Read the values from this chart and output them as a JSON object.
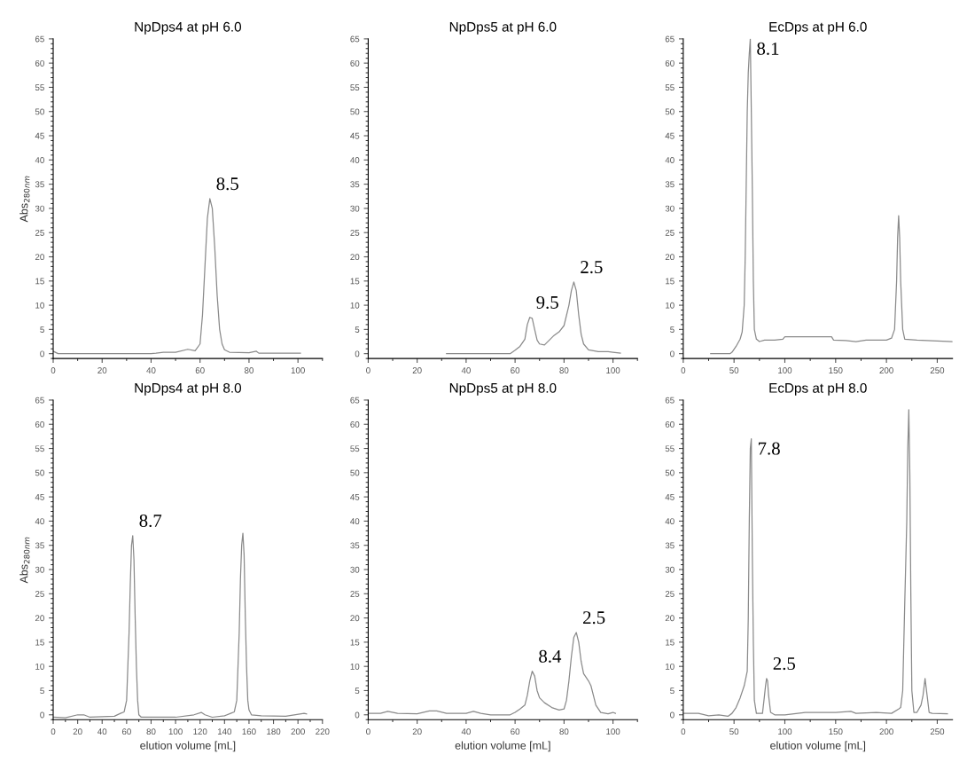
{
  "chart_data": [
    {
      "type": "line",
      "title": "NpDps4 at pH 6.0",
      "ylabel": "Abs$_{280nm}$",
      "xlim": [
        0,
        110
      ],
      "xticks": [
        0,
        20,
        40,
        60,
        80,
        100
      ],
      "ylim": [
        -1,
        65
      ],
      "yticks": [
        0,
        5,
        10,
        15,
        20,
        25,
        30,
        35,
        40,
        45,
        50,
        55,
        60,
        65
      ],
      "grid": false,
      "legend": false,
      "series": [
        {
          "color": "#8a8a8a",
          "x": [
            0,
            2,
            10,
            20,
            30,
            40,
            42,
            45,
            50,
            55,
            58,
            60,
            61,
            62,
            63,
            64,
            65,
            66,
            67,
            68,
            69,
            70,
            72,
            80,
            83,
            84,
            90,
            100,
            101
          ],
          "values": [
            0.5,
            0,
            0,
            0,
            0,
            0,
            0.1,
            0.3,
            0.3,
            0.9,
            0.6,
            2,
            8,
            18,
            28,
            32,
            30,
            22,
            12,
            5,
            2,
            0.8,
            0.3,
            0.2,
            0.5,
            0.1,
            0.1,
            0.1,
            0.1
          ]
        }
      ],
      "annotations": [
        {
          "text": "8.5",
          "x": 64,
          "y": 32
        }
      ]
    },
    {
      "type": "line",
      "title": "NpDps5 at pH 6.0",
      "xlim": [
        0,
        110
      ],
      "xticks": [
        0,
        20,
        40,
        60,
        80,
        100
      ],
      "ylim": [
        -1,
        65
      ],
      "yticks": [
        0,
        5,
        10,
        15,
        20,
        25,
        30,
        35,
        40,
        45,
        50,
        55,
        60,
        65
      ],
      "grid": false,
      "legend": false,
      "series": [
        {
          "color": "#8a8a8a",
          "x": [
            32,
            40,
            50,
            58,
            60,
            62,
            64,
            65,
            66,
            67,
            68,
            69,
            70,
            72,
            74,
            76,
            78,
            80,
            82,
            83,
            84,
            85,
            86,
            87,
            88,
            90,
            94,
            98,
            100,
            103
          ],
          "values": [
            0,
            0,
            0,
            0,
            0.7,
            1.5,
            3,
            6,
            7.5,
            7.3,
            5,
            2.8,
            2,
            1.8,
            2.8,
            3.8,
            4.5,
            5.8,
            10,
            13,
            14.8,
            13,
            8,
            4,
            2,
            0.8,
            0.4,
            0.4,
            0.3,
            0.1
          ]
        }
      ],
      "annotations": [
        {
          "text": "9.5",
          "x": 66,
          "y": 7.5
        },
        {
          "text": "2.5",
          "x": 84,
          "y": 14.8
        }
      ]
    },
    {
      "type": "line",
      "title": "EcDps at pH 6.0",
      "xlim": [
        0,
        265
      ],
      "xticks": [
        0,
        50,
        100,
        150,
        200,
        250
      ],
      "ylim": [
        -1,
        65
      ],
      "yticks": [
        0,
        5,
        10,
        15,
        20,
        25,
        30,
        35,
        40,
        45,
        50,
        55,
        60,
        65
      ],
      "grid": false,
      "legend": false,
      "series": [
        {
          "color": "#8a8a8a",
          "x": [
            27,
            46,
            48,
            52,
            56,
            58,
            60,
            61,
            62,
            63,
            64,
            65,
            66,
            67,
            68,
            69,
            70,
            72,
            75,
            80,
            90,
            98,
            100,
            105,
            140,
            146,
            148,
            160,
            170,
            180,
            200,
            205,
            208,
            210,
            211,
            212,
            213,
            214,
            216,
            218,
            230,
            265
          ],
          "values": [
            0,
            0,
            0.3,
            1.5,
            3,
            4.5,
            10,
            20,
            35,
            50,
            58,
            62,
            65,
            50,
            34,
            15,
            5,
            3,
            2.5,
            2.8,
            2.8,
            3,
            3.5,
            3.5,
            3.5,
            3.5,
            2.8,
            2.7,
            2.5,
            2.8,
            2.8,
            3.2,
            5,
            15,
            24,
            28.5,
            24,
            15,
            5,
            3,
            2.8,
            2.5
          ]
        }
      ],
      "annotations": [
        {
          "text": "8.1",
          "x": 66,
          "y": 65
        }
      ]
    },
    {
      "type": "line",
      "title": "NpDps4 at pH 8.0",
      "xlabel": "elution volume [mL]",
      "ylabel": "Abs$_{280nm}$",
      "xlim": [
        0,
        220
      ],
      "xticks": [
        0,
        20,
        40,
        60,
        80,
        100,
        120,
        140,
        160,
        180,
        200,
        220
      ],
      "ylim": [
        -1,
        65
      ],
      "yticks": [
        0,
        5,
        10,
        15,
        20,
        25,
        30,
        35,
        40,
        45,
        50,
        55,
        60,
        65
      ],
      "grid": false,
      "legend": false,
      "series": [
        {
          "color": "#8a8a8a",
          "x": [
            0,
            10,
            20,
            25,
            30,
            50,
            55,
            58,
            60,
            61,
            62,
            63,
            64,
            65,
            66,
            67,
            68,
            69,
            70,
            72,
            100,
            115,
            121,
            124,
            130,
            140,
            145,
            148,
            150,
            151,
            152,
            153,
            154,
            155,
            156,
            157,
            158,
            159,
            160,
            162,
            170,
            190,
            205,
            207
          ],
          "values": [
            -0.5,
            -0.6,
            0,
            0,
            -0.5,
            -0.3,
            0.3,
            0.6,
            3,
            10,
            17,
            27,
            35,
            37,
            32,
            20,
            10,
            3,
            0,
            -0.5,
            -0.5,
            0,
            0.5,
            0,
            -0.5,
            -0.2,
            0.3,
            0.6,
            3,
            10,
            17,
            28,
            35,
            37.5,
            33,
            20,
            10,
            3,
            1,
            0,
            -0.2,
            -0.3,
            0.3,
            0.2
          ]
        }
      ],
      "annotations": [
        {
          "text": "8.7",
          "x": 65,
          "y": 37
        }
      ]
    },
    {
      "type": "line",
      "title": "NpDps5 at pH 8.0",
      "xlabel": "elution volume [mL]",
      "xlim": [
        0,
        110
      ],
      "xticks": [
        0,
        20,
        40,
        60,
        80,
        100
      ],
      "ylim": [
        -1,
        65
      ],
      "yticks": [
        0,
        5,
        10,
        15,
        20,
        25,
        30,
        35,
        40,
        45,
        50,
        55,
        60,
        65
      ],
      "grid": false,
      "legend": false,
      "series": [
        {
          "color": "#8a8a8a",
          "x": [
            0,
            5,
            8,
            12,
            20,
            25,
            28,
            32,
            40,
            43,
            46,
            50,
            58,
            60,
            62,
            64,
            65,
            66,
            67,
            68,
            69,
            70,
            72,
            75,
            78,
            80,
            81,
            82,
            83,
            84,
            85,
            86,
            87,
            88,
            90,
            91,
            92,
            93,
            95,
            98,
            100,
            101
          ],
          "values": [
            0.3,
            0.3,
            0.7,
            0.3,
            0.2,
            0.8,
            0.8,
            0.3,
            0.3,
            0.7,
            0.3,
            0,
            0,
            0.5,
            1.2,
            2,
            4,
            7,
            9,
            8,
            5,
            3.5,
            2.5,
            1.5,
            1,
            1.2,
            3,
            7,
            12,
            16,
            17,
            15,
            11,
            8.5,
            7,
            6,
            4,
            2,
            0.5,
            0.2,
            0.5,
            0.3
          ]
        }
      ],
      "annotations": [
        {
          "text": "8.4",
          "x": 67,
          "y": 9
        },
        {
          "text": "2.5",
          "x": 85,
          "y": 17
        }
      ]
    },
    {
      "type": "line",
      "title": "EcDps at pH 8.0",
      "xlabel": "elution volume [mL]",
      "xlim": [
        0,
        265
      ],
      "xticks": [
        0,
        50,
        100,
        150,
        200,
        250
      ],
      "ylim": [
        -1,
        65
      ],
      "yticks": [
        0,
        5,
        10,
        15,
        20,
        25,
        30,
        35,
        40,
        45,
        50,
        55,
        60,
        65
      ],
      "grid": false,
      "legend": false,
      "series": [
        {
          "color": "#8a8a8a",
          "x": [
            0,
            15,
            25,
            35,
            44,
            48,
            52,
            56,
            60,
            63,
            64,
            65,
            66,
            67,
            68,
            69,
            70,
            72,
            78,
            80,
            81,
            82,
            83,
            84,
            86,
            90,
            100,
            120,
            150,
            165,
            170,
            190,
            205,
            212,
            214,
            216,
            218,
            220,
            221,
            222,
            223,
            224,
            225,
            227,
            230,
            234,
            236,
            238,
            240,
            242,
            245,
            260
          ],
          "values": [
            0.3,
            0.3,
            -0.2,
            0,
            -0.3,
            0.3,
            1.5,
            3.5,
            6,
            9,
            20,
            40,
            55,
            57,
            33,
            15,
            3,
            0.3,
            0.3,
            4,
            6,
            7.5,
            7,
            4,
            0.5,
            0,
            0,
            0.5,
            0.5,
            0.7,
            0.3,
            0.5,
            0.3,
            1.2,
            1.5,
            5,
            23,
            40,
            55,
            63,
            50,
            25,
            5,
            0.5,
            0.5,
            2,
            4,
            7.5,
            4,
            0.5,
            0.3,
            0.2
          ]
        }
      ],
      "annotations": [
        {
          "text": "7.8",
          "x": 67,
          "y": 57
        },
        {
          "text": "2.5",
          "x": 82,
          "y": 7.5
        }
      ]
    }
  ]
}
